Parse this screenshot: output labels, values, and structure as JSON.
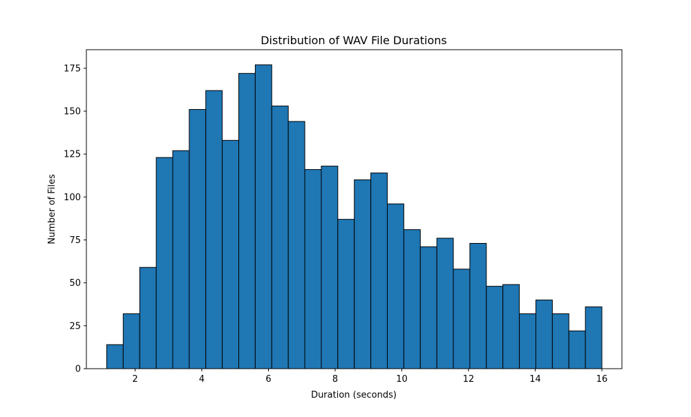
{
  "chart_data": {
    "type": "bar",
    "title": "Distribution of WAV File Durations",
    "xlabel": "Duration (seconds)",
    "ylabel": "Number of Files",
    "xlim": [
      0.54,
      16.6
    ],
    "ylim": [
      0,
      185.8
    ],
    "x_ticks": [
      2,
      4,
      6,
      8,
      10,
      12,
      14,
      16
    ],
    "y_ticks": [
      0,
      25,
      50,
      75,
      100,
      125,
      150,
      175
    ],
    "grid": false,
    "legend": "none",
    "bar_color": "#1f77b4",
    "edge_color": "#000000",
    "bin_edges": [
      1.15,
      1.645,
      2.14,
      2.635,
      3.13,
      3.625,
      4.12,
      4.615,
      5.11,
      5.605,
      6.1,
      6.595,
      7.09,
      7.585,
      8.08,
      8.575,
      9.07,
      9.565,
      10.06,
      10.555,
      11.05,
      11.545,
      12.04,
      12.535,
      13.03,
      13.525,
      14.02,
      14.515,
      15.01,
      15.505,
      16.0
    ],
    "values": [
      14,
      32,
      59,
      123,
      127,
      151,
      162,
      133,
      172,
      177,
      153,
      144,
      116,
      118,
      87,
      110,
      114,
      96,
      81,
      71,
      76,
      58,
      73,
      48,
      49,
      32,
      40,
      32,
      22,
      36
    ]
  }
}
